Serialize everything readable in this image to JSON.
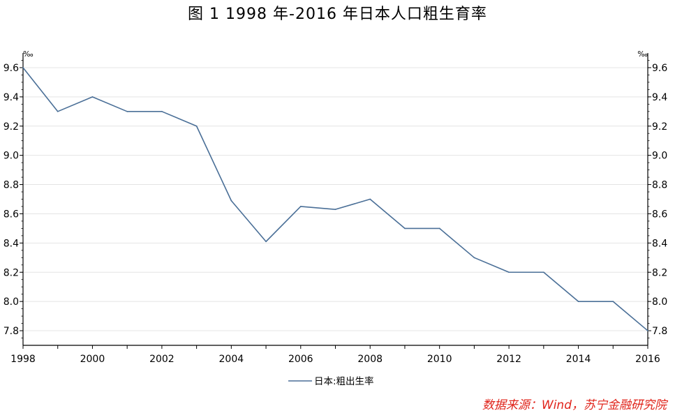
{
  "chart_data": {
    "type": "line",
    "title": "图 1   1998 年-2016 年日本人口粗生育率",
    "unit_left": "‰",
    "unit_right": "‰",
    "x": [
      1998,
      1999,
      2000,
      2001,
      2002,
      2003,
      2004,
      2005,
      2006,
      2007,
      2008,
      2009,
      2010,
      2011,
      2012,
      2013,
      2014,
      2015,
      2016
    ],
    "x_tick_labels": [
      "1998",
      "2000",
      "2002",
      "2004",
      "2006",
      "2008",
      "2010",
      "2012",
      "2014",
      "2016"
    ],
    "y_tick_labels": [
      "7.8",
      "8.0",
      "8.2",
      "8.4",
      "8.6",
      "8.8",
      "9.0",
      "9.2",
      "9.4",
      "9.6"
    ],
    "ylim": [
      7.7,
      9.7
    ],
    "xlim": [
      1998,
      2016
    ],
    "series": [
      {
        "name": "日本:粗出生率",
        "color": "#4a6f97",
        "values": [
          9.6,
          9.3,
          9.4,
          9.3,
          9.3,
          9.2,
          8.69,
          8.41,
          8.65,
          8.63,
          8.7,
          8.5,
          8.5,
          8.3,
          8.2,
          8.2,
          8.0,
          8.0,
          7.8
        ]
      }
    ],
    "grid": true,
    "legend_position": "bottom-center"
  },
  "source_note": "数据来源：Wind，苏宁金融研究院"
}
